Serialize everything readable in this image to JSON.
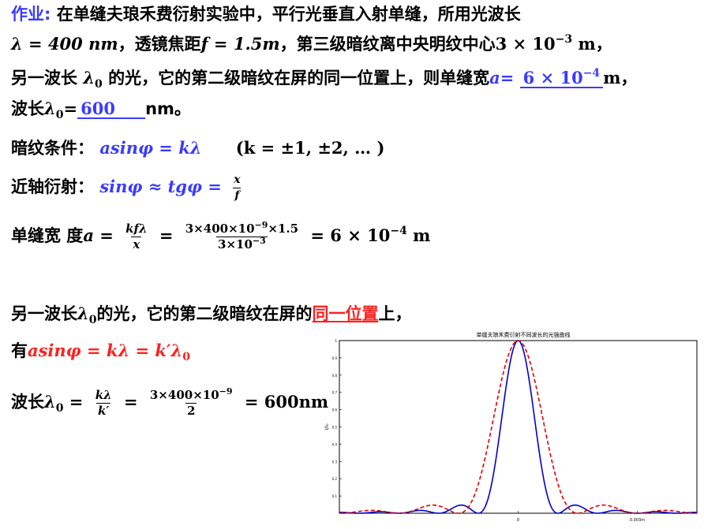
{
  "problem": {
    "label": "作业:",
    "line1": "在单缝夫琅禾费衍射实验中，平行光垂直入射单缝，所用光波长",
    "line2_lambda": "λ = 400 nm",
    "line2_a": "，透镜焦距",
    "line2_f": "f = 1.5m",
    "line2_b": "，第三级暗纹离中央明纹中心",
    "line2_dist": "3 × 10",
    "line2_dist_exp": "−3",
    "line2_unit": " m，",
    "line3_a": "另一波长 ",
    "line3_lambda0": "λ",
    "line3_lambda0_sub": "0",
    "line3_b": " 的光，它的第二级暗纹在屏的同一位置上，则单缝宽",
    "line3_avar": "a",
    "line3_eq": "=",
    "answer1": "6 × 10",
    "answer1_exp": "−4",
    "line3_unit": "m，",
    "line4_a": "波长",
    "line4_lambda": "λ",
    "line4_sub": "0",
    "line4_eq": "=",
    "answer2": "600",
    "line4_unit": "nm。"
  },
  "solution": {
    "dark_label": "暗纹条件：",
    "dark_formula": "asinφ = kλ",
    "dark_cond": "(k = ±1, ±2, … )",
    "paraxial_label": "近轴衍射：",
    "paraxial_formula": "sinφ ≈ tgφ =",
    "paraxial_num": "x",
    "paraxial_den": "f",
    "width_label": "单缝宽 度",
    "width_var": "a =",
    "width_frac_num": "kfλ",
    "width_frac_den": "x",
    "width_eq": "=",
    "width_num": "3×400×10",
    "width_num_exp": "−9",
    "width_num_tail": "×1.5",
    "width_den": "3×10",
    "width_den_exp": "−3",
    "width_result": "= 6 × 10",
    "width_result_exp": "−4",
    "width_result_unit": " m",
    "second_a": "另一波长",
    "second_lambda": "λ",
    "second_sub": "0",
    "second_b": "的光，它的第二级暗纹在屏的",
    "second_red": "同一位置",
    "second_c": "上，",
    "have_label": "有",
    "have_formula": "asinφ = kλ = k′λ",
    "have_sub": "0",
    "wl_label": "波长",
    "wl_lambda": "λ",
    "wl_sub": "0",
    "wl_eq1": "=",
    "wl_frac_num": "kλ",
    "wl_frac_den": "k′",
    "wl_eq2": "=",
    "wl_num": "3×400×10",
    "wl_num_exp": "−9",
    "wl_den": "2",
    "wl_result": "= 600nm"
  },
  "chart_data": {
    "type": "line",
    "title": "单缝夫琅禾费衍射不同波长的光强曲线",
    "ylabel": "I/I₀",
    "x_tick_labels": [
      "0",
      "0.003m"
    ],
    "ylim": [
      0,
      1
    ],
    "y_ticks": [
      0.1,
      0.2,
      0.3,
      0.4,
      0.5,
      0.6,
      0.7,
      0.8,
      0.9,
      1
    ],
    "series": [
      {
        "color": "#0000cc",
        "style": "solid",
        "dark_fringe_spacing": 0.001
      },
      {
        "color": "#dd0000",
        "style": "dashed",
        "dark_fringe_spacing": 0.0015
      }
    ]
  }
}
